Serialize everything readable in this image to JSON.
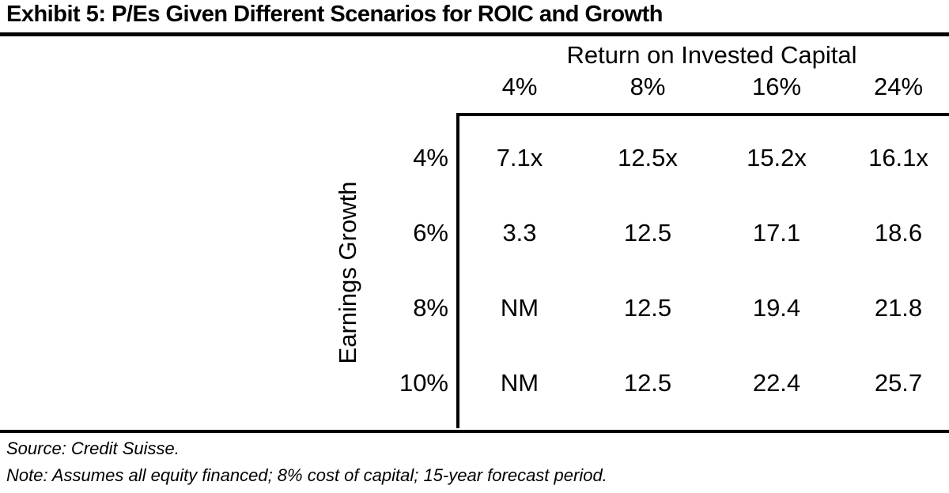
{
  "title": "Exhibit 5: P/Es Given Different Scenarios for ROIC and Growth",
  "table": {
    "column_group_label": "Return on Invested Capital",
    "row_group_label": "Earnings Growth",
    "column_headers": [
      "4%",
      "8%",
      "16%",
      "24%"
    ],
    "row_headers": [
      "4%",
      "6%",
      "8%",
      "10%"
    ],
    "rows": [
      [
        "7.1x",
        "12.5x",
        "15.2x",
        "16.1x"
      ],
      [
        "3.3",
        "12.5",
        "17.1",
        "18.6"
      ],
      [
        "NM",
        "12.5",
        "19.4",
        "21.8"
      ],
      [
        "NM",
        "12.5",
        "22.4",
        "25.7"
      ]
    ]
  },
  "footer": {
    "source": "Source: Credit Suisse.",
    "note": "Note: Assumes all equity financed; 8% cost of capital; 15-year forecast period."
  },
  "colors": {
    "text": "#000000",
    "background": "#ffffff",
    "rule": "#000000"
  },
  "chart_data": {
    "type": "table",
    "title": "Exhibit 5: P/Es Given Different Scenarios for ROIC and Growth",
    "column_group": "Return on Invested Capital",
    "row_group": "Earnings Growth",
    "columns": [
      "4%",
      "8%",
      "16%",
      "24%"
    ],
    "rows": [
      "4%",
      "6%",
      "8%",
      "10%"
    ],
    "values": [
      [
        "7.1x",
        "12.5x",
        "15.2x",
        "16.1x"
      ],
      [
        "3.3",
        "12.5",
        "17.1",
        "18.6"
      ],
      [
        "NM",
        "12.5",
        "19.4",
        "21.8"
      ],
      [
        "NM",
        "12.5",
        "22.4",
        "25.7"
      ]
    ],
    "notes": [
      "Source: Credit Suisse.",
      "Note: Assumes all equity financed; 8% cost of capital; 15-year forecast period."
    ]
  }
}
